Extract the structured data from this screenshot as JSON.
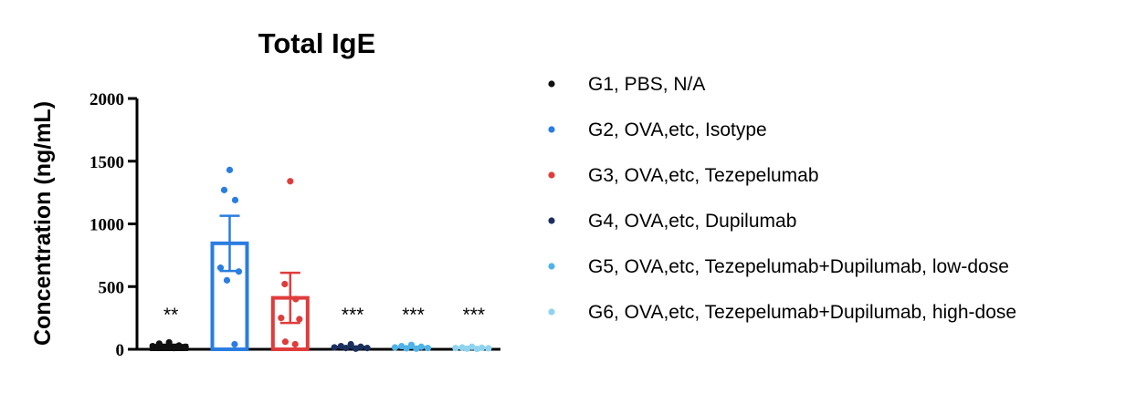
{
  "chart_data": {
    "type": "bar",
    "title": "Total IgE",
    "ylabel": "Concentration (ng/mL)",
    "xlabel": "",
    "ylim": [
      0,
      2000
    ],
    "yticks": [
      "0",
      "500",
      "1000",
      "1500",
      "2000"
    ],
    "grid": false,
    "legend_position": "right",
    "groups": [
      {
        "name": "G1, PBS, N/A",
        "color": "#111111",
        "mean": 28,
        "sem": 8,
        "significance": "**",
        "points": [
          55,
          45,
          30,
          25,
          20,
          15,
          10
        ]
      },
      {
        "name": "G2, OVA,etc, Isotype",
        "color": "#2a7de1",
        "mean": 845,
        "sem": 220,
        "significance": "",
        "points": [
          1430,
          1270,
          1190,
          650,
          620,
          550,
          40
        ]
      },
      {
        "name": "G3, OVA,etc, Tezepelumab",
        "color": "#e03c3c",
        "mean": 410,
        "sem": 200,
        "significance": "",
        "points": [
          1340,
          520,
          400,
          250,
          240,
          60,
          40
        ]
      },
      {
        "name": "G4, OVA,etc, Dupilumab",
        "color": "#1b2f5e",
        "mean": 18,
        "sem": 5,
        "significance": "***",
        "points": [
          40,
          25,
          20,
          15,
          10,
          10,
          5
        ]
      },
      {
        "name": "G5, OVA,etc, Tezepelumab+Dupilumab, low-dose",
        "color": "#4fb3e8",
        "mean": 16,
        "sem": 5,
        "significance": "***",
        "points": [
          35,
          25,
          20,
          15,
          10,
          8,
          5
        ]
      },
      {
        "name": "G6, OVA,etc, Tezepelumab+Dupilumab, high-dose",
        "color": "#8fd3ef",
        "mean": 10,
        "sem": 3,
        "significance": "***",
        "points": [
          20,
          15,
          12,
          10,
          8,
          5,
          3
        ]
      }
    ]
  }
}
